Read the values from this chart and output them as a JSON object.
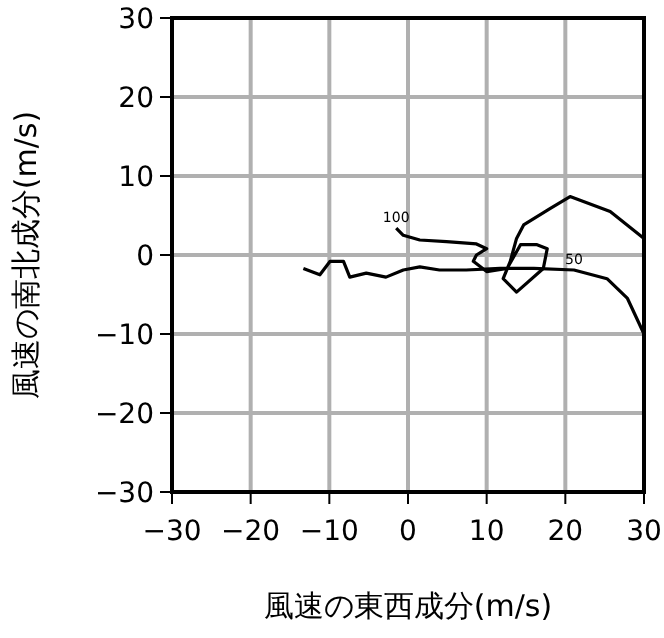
{
  "chart_data": {
    "type": "line",
    "xlabel": "風速の東西成分(m/s)",
    "ylabel": "風速の南北成分(m/s)",
    "xlim": [
      -30,
      30
    ],
    "ylim": [
      -30,
      30
    ],
    "xticks": [
      -30,
      -20,
      -10,
      0,
      10,
      20,
      30
    ],
    "yticks": [
      -30,
      -20,
      -10,
      0,
      10,
      20,
      30
    ],
    "grid": true,
    "marker": "none",
    "line_style": "solid",
    "series": [
      {
        "color": "#000000",
        "x": [
          -13.3,
          -11.2,
          -9.9,
          -8.2,
          -7.4,
          -5.3,
          -2.8,
          -0.6,
          1.5,
          4.0,
          7.4,
          11.7,
          16,
          21.1,
          25.3,
          27.9,
          30
        ],
        "values": [
          -1.7,
          -2.5,
          -0.8,
          -0.8,
          -2.8,
          -2.3,
          -2.8,
          -1.9,
          -1.5,
          -1.9,
          -1.9,
          -1.7,
          -1.7,
          -1.9,
          -3.0,
          -5.5,
          -10
        ]
      },
      {
        "color": "#000000",
        "x": [
          30,
          25.7,
          20.6,
          18.1,
          14.7,
          13.8,
          13,
          12.1,
          13.8,
          17.2,
          17.7,
          16.4,
          14.3,
          12.6,
          10,
          8.3,
          8.7,
          10,
          8.7,
          4.9,
          1.5,
          -0.6,
          -1.5
        ],
        "values": [
          2.1,
          5.5,
          7.4,
          5.9,
          3.8,
          2.1,
          -0.8,
          -3.0,
          -4.7,
          -1.7,
          0.8,
          1.3,
          1.3,
          -1.7,
          -2.1,
          -0.8,
          0,
          0.8,
          1.4,
          1.7,
          1.9,
          2.5,
          3.4
        ]
      }
    ],
    "annotations": [
      {
        "text": "100",
        "x": -1.5,
        "y": 3.4
      },
      {
        "text": "50",
        "x": 21.1,
        "y": -1.9
      }
    ]
  }
}
